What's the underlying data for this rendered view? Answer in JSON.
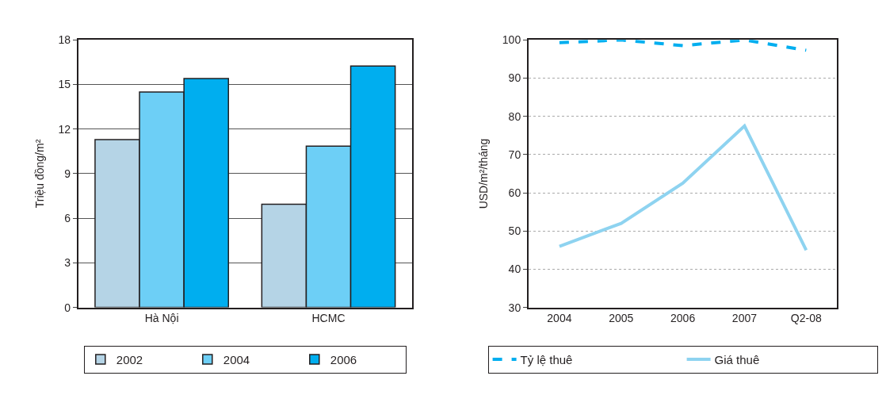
{
  "chart_data": [
    {
      "type": "bar",
      "ylabel": "Triệu đồng/m²",
      "categories": [
        "Hà Nội",
        "HCMC"
      ],
      "ylim": [
        0,
        18
      ],
      "yticks": [
        0,
        3,
        6,
        9,
        12,
        15,
        18
      ],
      "grid": "y",
      "legend": "bottom",
      "series": [
        {
          "name": "2002",
          "color": "#b5d4e6",
          "values": [
            11.3,
            6.95
          ]
        },
        {
          "name": "2004",
          "color": "#6dcff6",
          "values": [
            14.5,
            10.85
          ]
        },
        {
          "name": "2006",
          "color": "#00aeef",
          "values": [
            15.4,
            16.25
          ]
        }
      ]
    },
    {
      "type": "line",
      "ylabel": "USD/m²/tháng",
      "categories": [
        "2004",
        "2005",
        "2006",
        "2007",
        "Q2-08"
      ],
      "ylim": [
        30,
        100
      ],
      "yticks": [
        30,
        40,
        50,
        60,
        70,
        80,
        90,
        100
      ],
      "grid": "y",
      "legend": "bottom",
      "marker": "none",
      "series": [
        {
          "name": "Tỷ lệ thuê",
          "color": "#00aeef",
          "line_style": "dashed",
          "values": [
            99.3,
            100,
            98.5,
            100,
            97.3
          ]
        },
        {
          "name": "Giá thuê",
          "color": "#8ed3f0",
          "line_style": "solid",
          "values": [
            46,
            52,
            62.5,
            77.5,
            45
          ]
        }
      ]
    }
  ]
}
